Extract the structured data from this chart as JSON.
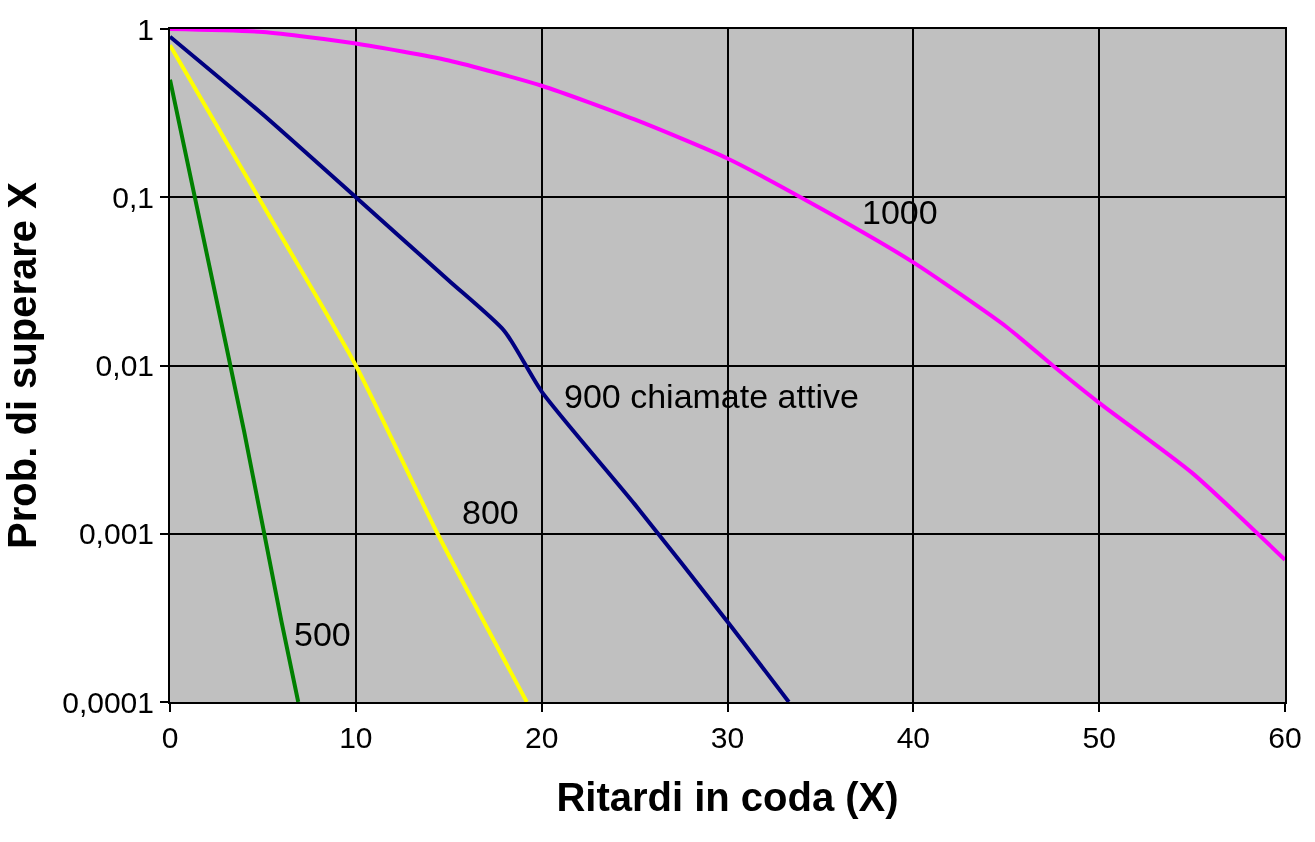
{
  "chart_data": {
    "type": "line",
    "xlabel": "Ritardi in coda (X)",
    "ylabel": "Prob. di superare X",
    "series": [
      {
        "name": "500",
        "color": "#008000",
        "x": [
          0,
          2,
          4,
          6,
          6.9
        ],
        "values": [
          0.5,
          0.045,
          0.004,
          0.0003,
          0.0001
        ]
      },
      {
        "name": "800",
        "color": "#ffff00",
        "x": [
          0,
          5,
          10,
          14.4,
          19.2
        ],
        "values": [
          0.8,
          0.09,
          0.01,
          0.001,
          0.0001
        ]
      },
      {
        "name": "900 chiamate attive",
        "color": "#000080",
        "x": [
          0,
          5,
          10,
          15,
          18,
          20,
          25,
          30,
          33.3
        ],
        "values": [
          0.9,
          0.31,
          0.1,
          0.032,
          0.016,
          0.007,
          0.0015,
          0.0003,
          0.0001
        ]
      },
      {
        "name": "1000",
        "color": "#ff00ff",
        "x": [
          0,
          5,
          10,
          15,
          20,
          25,
          30,
          35,
          40,
          45,
          47.5,
          50,
          55,
          60
        ],
        "values": [
          1,
          0.96,
          0.82,
          0.65,
          0.46,
          0.29,
          0.17,
          0.086,
          0.041,
          0.017,
          0.01,
          0.006,
          0.0023,
          0.0007
        ]
      }
    ],
    "xlim": [
      0,
      60
    ],
    "xticks": [
      0,
      10,
      20,
      30,
      40,
      50,
      60
    ],
    "ylim": [
      0.0001,
      1
    ],
    "yticks": [
      {
        "value": 0.0001,
        "label": "0,0001"
      },
      {
        "value": 0.001,
        "label": "0,001"
      },
      {
        "value": 0.01,
        "label": "0,01"
      },
      {
        "value": 0.1,
        "label": "0,1"
      },
      1
    ],
    "log": true,
    "grid": true,
    "legend": false,
    "marker": "none",
    "line_style": "solid"
  }
}
